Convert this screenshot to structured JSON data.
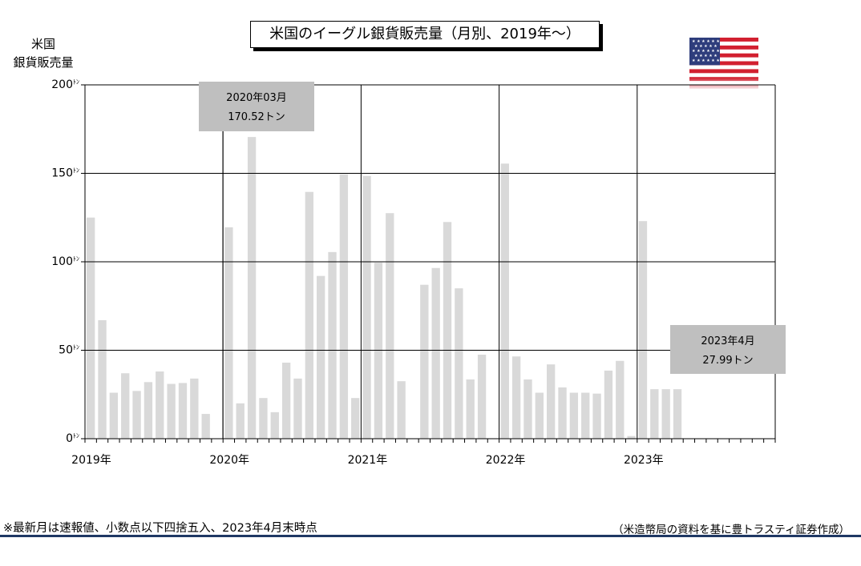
{
  "header": {
    "title": "米国のイーグル銀貨販売量（月別、2019年～）",
    "ylabel": "米国\n銀貨販売量"
  },
  "icons": {
    "flag": "us-flag-icon"
  },
  "colors": {
    "bar": "#d9d9d9",
    "grid": "#000000",
    "annotation_bg": "#bfbfbf",
    "footer_rule": "#1f3864"
  },
  "annotations": [
    {
      "line1": "2020年03月",
      "line2": "170.52トン",
      "x": "2020-03",
      "y": 170.52
    },
    {
      "line1": "2023年4月",
      "line2": "27.99トン",
      "x": "2023-04",
      "y": 27.99
    }
  ],
  "footer": {
    "note": "※最新月は速報値、小数点以下四捨五入、2023年4月末時点",
    "source": "（米造幣局の資料を基に豊トラスティ証券作成）"
  },
  "chart_data": {
    "type": "bar",
    "title": "米国のイーグル銀貨販売量（月別、2019年～）",
    "ylabel": "米国 銀貨販売量",
    "ylim": [
      0,
      200
    ],
    "yticks": [
      0,
      50,
      100,
      150,
      200
    ],
    "ytick_suffix": "ﾄﾝ",
    "xtick_labels": [
      "2019年",
      "2020年",
      "2021年",
      "2022年",
      "2023年"
    ],
    "grid": true,
    "categories": [
      "2019-01",
      "2019-02",
      "2019-03",
      "2019-04",
      "2019-05",
      "2019-06",
      "2019-07",
      "2019-08",
      "2019-09",
      "2019-10",
      "2019-11",
      "2019-12",
      "2020-01",
      "2020-02",
      "2020-03",
      "2020-04",
      "2020-05",
      "2020-06",
      "2020-07",
      "2020-08",
      "2020-09",
      "2020-10",
      "2020-11",
      "2020-12",
      "2021-01",
      "2021-02",
      "2021-03",
      "2021-04",
      "2021-05",
      "2021-06",
      "2021-07",
      "2021-08",
      "2021-09",
      "2021-10",
      "2021-11",
      "2021-12",
      "2022-01",
      "2022-02",
      "2022-03",
      "2022-04",
      "2022-05",
      "2022-06",
      "2022-07",
      "2022-08",
      "2022-09",
      "2022-10",
      "2022-11",
      "2022-12",
      "2023-01",
      "2023-02",
      "2023-03",
      "2023-04",
      "2023-05",
      "2023-06",
      "2023-07",
      "2023-08",
      "2023-09",
      "2023-10",
      "2023-11",
      "2023-12"
    ],
    "values": [
      125,
      67,
      26,
      37,
      27,
      32,
      38,
      31,
      31.5,
      34,
      14,
      0,
      119.5,
      20,
      170.52,
      23,
      15,
      43,
      34,
      139.5,
      92,
      105.5,
      149.5,
      23,
      148.5,
      99.5,
      127.5,
      32.5,
      0,
      87,
      96.5,
      122.5,
      85,
      33.5,
      47.5,
      0,
      155.5,
      46.5,
      33.5,
      26,
      42,
      29,
      26,
      26,
      25.5,
      38.5,
      44,
      1.5,
      123,
      28,
      28,
      27.99,
      null,
      null,
      null,
      null,
      null,
      null,
      null,
      null
    ]
  }
}
